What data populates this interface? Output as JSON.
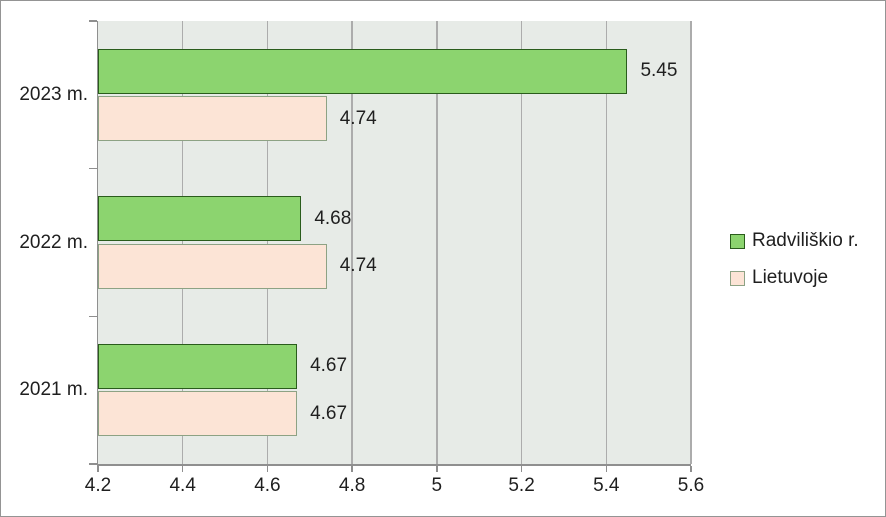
{
  "colors": {
    "plot_background": "#E7EBE7",
    "gridline": "#ACACAC",
    "axis": "#8F8F8F",
    "frame_border": "#949494",
    "text": "#1F1F1F"
  },
  "legend": {
    "position": "right",
    "items": [
      {
        "label": "Radviliškio r.",
        "fill": "#8CD46F",
        "border": "#2A5C1C"
      },
      {
        "label": "Lietuvoje",
        "fill": "#FCE4D6",
        "border": "#8DA284"
      }
    ]
  },
  "chart_data": {
    "type": "bar",
    "orientation": "horizontal",
    "title": "",
    "xlabel": "",
    "ylabel": "",
    "categories": [
      "2023 m.",
      "2022 m.",
      "2021 m."
    ],
    "series": [
      {
        "name": "Radviliškio r.",
        "fill": "#8CD46F",
        "border": "#2A5C1C",
        "values": [
          5.45,
          4.68,
          4.67
        ]
      },
      {
        "name": "Lietuvoje",
        "fill": "#FCE4D6",
        "border": "#8DA284",
        "values": [
          4.74,
          4.74,
          4.67
        ]
      }
    ],
    "data_labels": {
      "Radviliškio r.": [
        "5.45",
        "4.68",
        "4.67"
      ],
      "Lietuvoje": [
        "4.74",
        "4.74",
        "4.67"
      ]
    },
    "xlim": [
      4.2,
      5.6
    ],
    "x_ticks": [
      "4.2",
      "4.4",
      "4.6",
      "4.8",
      "5",
      "5.2",
      "5.4",
      "5.6"
    ],
    "grid": true,
    "legend_position": "right"
  }
}
